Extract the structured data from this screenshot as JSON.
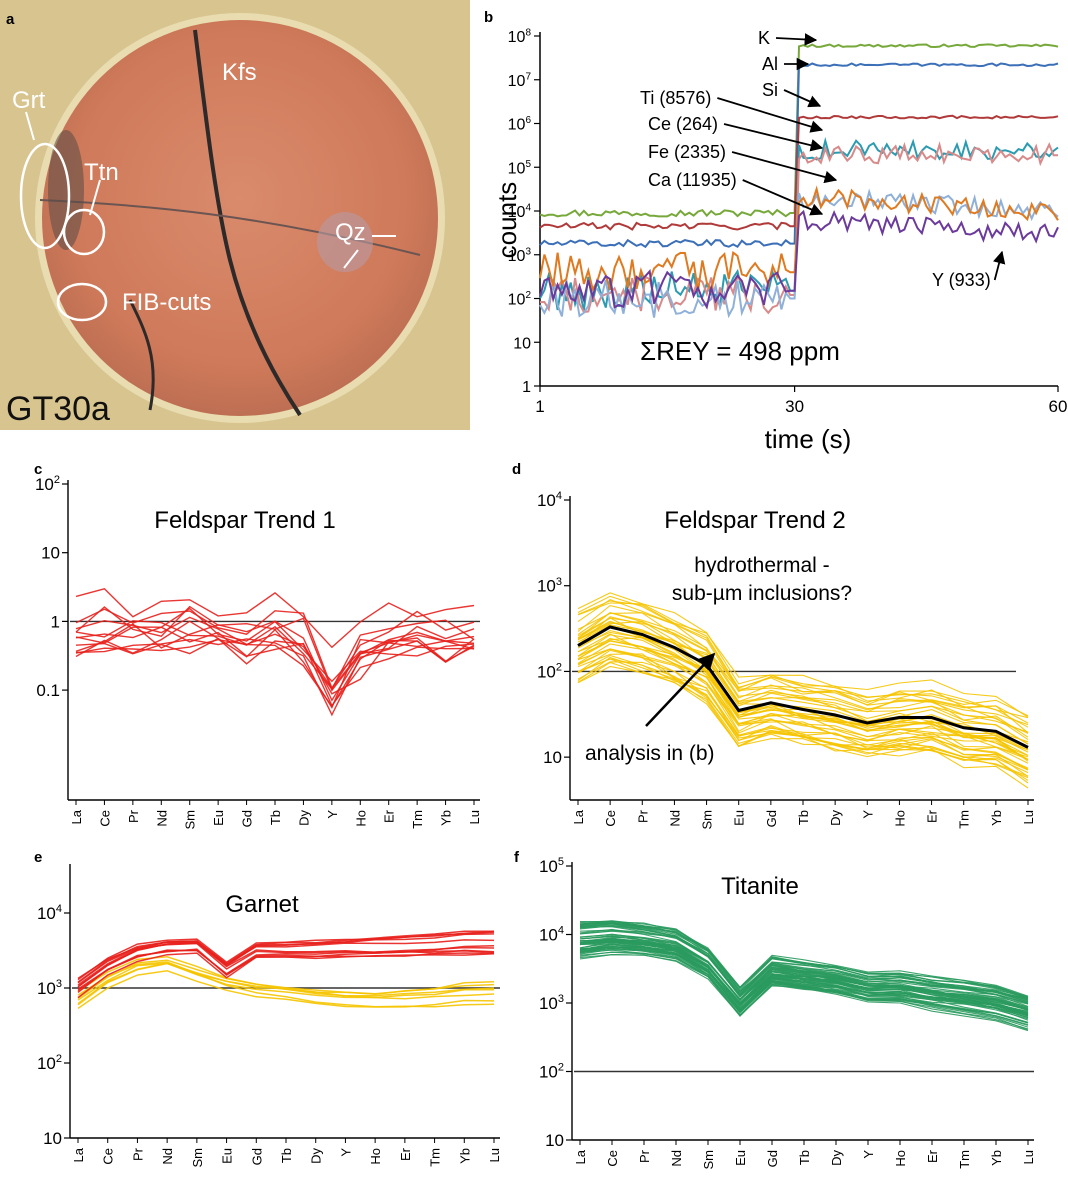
{
  "photo": {
    "panel_letter": "a",
    "sample_label": "GT30a",
    "labels": [
      "Grt",
      "Kfs",
      "Ttn",
      "Qz",
      "FIB-cuts"
    ]
  },
  "ree_ticks": [
    "La",
    "Ce",
    "Pr",
    "Nd",
    "Sm",
    "Eu",
    "Gd",
    "Tb",
    "Dy",
    "Y",
    "Ho",
    "Er",
    "Tm",
    "Yb",
    "Lu"
  ],
  "chart_data": [
    {
      "panel": "b",
      "type": "line",
      "log_y": true,
      "ylim": [
        1,
        100000000
      ],
      "xlim": [
        1,
        60
      ],
      "xlabel": "time (s)",
      "ylabel": "counts",
      "x_ticks": [
        "1",
        "30",
        "60"
      ],
      "y_ticks": [
        "1",
        "10",
        "10^2",
        "10^3",
        "10^4",
        "10^5",
        "10^6",
        "10^7",
        "10^8"
      ],
      "annotation": "ΣREY = 498 ppm",
      "series": [
        {
          "name": "K",
          "color": "#76a83a",
          "background": 9000,
          "signal": 60000000
        },
        {
          "name": "Al",
          "color": "#3b6fb8",
          "background": 1800,
          "signal": 22000000
        },
        {
          "name": "Si",
          "color": "#b03a3a",
          "background": 4500,
          "signal": 1400000
        },
        {
          "name": "Ti (8576)",
          "color": "#2a9bb0",
          "background": 150,
          "signal": 250000
        },
        {
          "name": "Ce (264)",
          "color": "#d88a8a",
          "background": 120,
          "signal": 200000
        },
        {
          "name": "Fe (2335)",
          "color": "#8fb0d8",
          "background": 100,
          "signal": 20000
        },
        {
          "name": "Ca (11935)",
          "color": "#e07a20",
          "background": 400,
          "signal": 20000
        },
        {
          "name": "Y (933)",
          "color": "#6b3a9b",
          "background": 150,
          "signal": 6000
        }
      ]
    },
    {
      "panel": "c",
      "type": "line",
      "title": "Feldspar Trend 1",
      "log_y": true,
      "y_ticks": [
        "0.1",
        "1",
        "10",
        "10^2"
      ],
      "reference_line": 1,
      "color": "#e8201c",
      "series_count": 12,
      "median_pattern": [
        0.9,
        1.0,
        0.9,
        0.8,
        1.1,
        0.8,
        0.7,
        0.8,
        0.55,
        0.12,
        0.4,
        0.55,
        0.7,
        0.6,
        0.8
      ]
    },
    {
      "panel": "d",
      "type": "line",
      "title": "Feldspar Trend 2",
      "annotation": "hydrothermal - sub-µm inclusions?",
      "arrow_label": "analysis in (b)",
      "log_y": true,
      "y_ticks": [
        "10",
        "10^2",
        "10^3",
        "10^4"
      ],
      "reference_line": 100,
      "color": "#f5c400",
      "highlight_color": "#000000",
      "series_count": 40,
      "highlight": [
        200,
        330,
        270,
        190,
        120,
        35,
        43,
        36,
        31,
        25,
        29,
        29,
        22,
        20,
        13
      ]
    },
    {
      "panel": "e",
      "type": "line",
      "title": "Garnet",
      "log_y": true,
      "y_ticks": [
        "10",
        "10^2",
        "10^3",
        "10^4"
      ],
      "reference_line": 1000,
      "series_count": 18,
      "groups": [
        {
          "color": "#e8201c",
          "median": [
            1000,
            1900,
            2900,
            3400,
            3500,
            1700,
            3000,
            3000,
            3000,
            3200,
            3200,
            3300,
            3400,
            3600,
            3600
          ]
        },
        {
          "color": "#f5c400",
          "median": [
            700,
            1300,
            1900,
            2100,
            1500,
            1100,
            900,
            800,
            700,
            650,
            600,
            620,
            640,
            700,
            700
          ]
        }
      ]
    },
    {
      "panel": "f",
      "type": "line",
      "title": "Titanite",
      "log_y": true,
      "y_ticks": [
        "10",
        "10^2",
        "10^3",
        "10^4",
        "10^5"
      ],
      "reference_line": 100,
      "color": "#2a9a5e",
      "series_count": 60,
      "median_pattern": [
        9000,
        10000,
        9000,
        7500,
        4000,
        1100,
        3000,
        2600,
        2300,
        1800,
        1800,
        1500,
        1300,
        1100,
        800
      ]
    }
  ]
}
